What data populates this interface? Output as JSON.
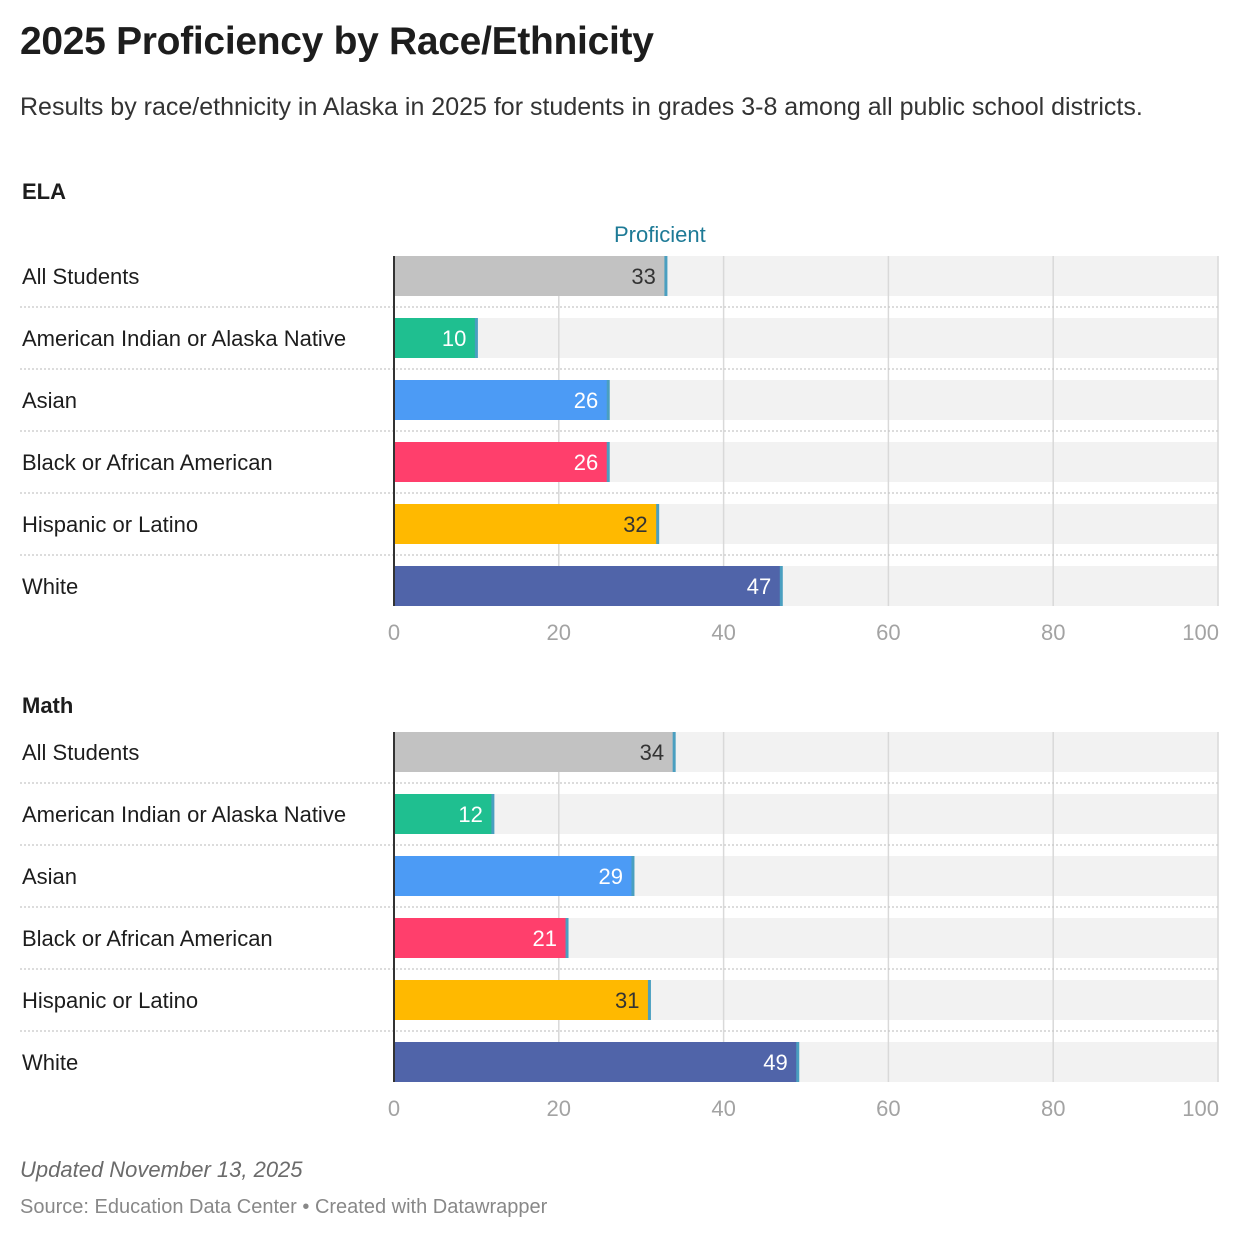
{
  "title": "2025 Proficiency by Race/Ethnicity",
  "subtitle": "Results by race/ethnicity in Alaska in 2025 for students in grades 3-8 among all public school districts.",
  "chart_data": [
    {
      "type": "bar",
      "title": "ELA",
      "legend": "Proficient",
      "categories": [
        "All Students",
        "American Indian or Alaska Native",
        "Asian",
        "Black or African American",
        "Hispanic or Latino",
        "White"
      ],
      "values": [
        33,
        10,
        26,
        26,
        32,
        47
      ],
      "colors": [
        "#c2c2c2",
        "#1fbf90",
        "#4c9bf5",
        "#ff3f6c",
        "#ffb900",
        "#5064a9"
      ],
      "label_colors": [
        "#333333",
        "#ffffff",
        "#ffffff",
        "#ffffff",
        "#333333",
        "#ffffff"
      ],
      "xlim": [
        0,
        100
      ],
      "ticks": [
        0,
        20,
        40,
        60,
        80,
        100
      ]
    },
    {
      "type": "bar",
      "title": "Math",
      "categories": [
        "All Students",
        "American Indian or Alaska Native",
        "Asian",
        "Black or African American",
        "Hispanic or Latino",
        "White"
      ],
      "values": [
        34,
        12,
        29,
        21,
        31,
        49
      ],
      "colors": [
        "#c2c2c2",
        "#1fbf90",
        "#4c9bf5",
        "#ff3f6c",
        "#ffb900",
        "#5064a9"
      ],
      "label_colors": [
        "#333333",
        "#ffffff",
        "#ffffff",
        "#ffffff",
        "#333333",
        "#ffffff"
      ],
      "xlim": [
        0,
        100
      ],
      "ticks": [
        0,
        20,
        40,
        60,
        80,
        100
      ]
    }
  ],
  "colors": {
    "track": "#f2f2f2",
    "grid": "#d9d9d9",
    "marker": "#4a9fc0",
    "legend": "#1d7a96"
  },
  "notes": "Updated November 13, 2025",
  "source": "Source: Education Data Center • Created with Datawrapper"
}
